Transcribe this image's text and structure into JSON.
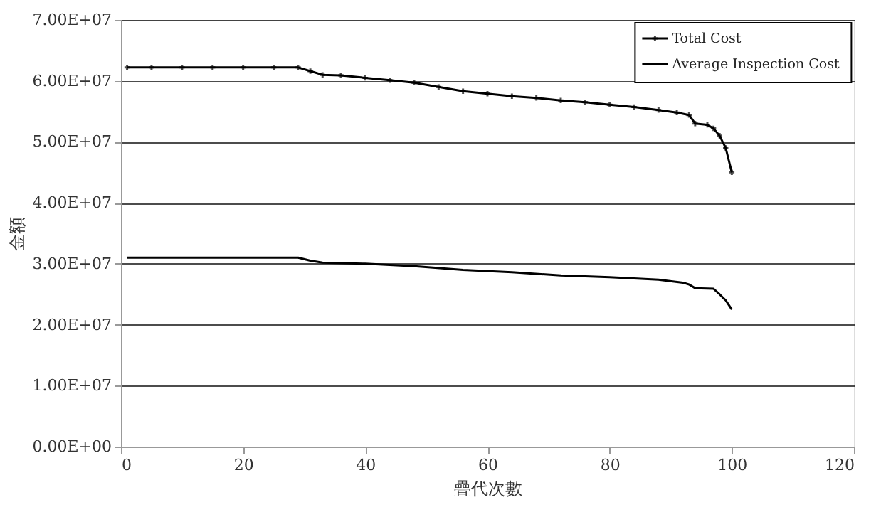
{
  "chart_data": {
    "type": "line",
    "xlabel": "疊代次數",
    "ylabel": "金額",
    "xlim": [
      0,
      120
    ],
    "xticks": [
      0,
      20,
      40,
      60,
      80,
      100,
      120
    ],
    "ylim": [
      0,
      70000000
    ],
    "yticks": [
      {
        "value": 0,
        "label": "0.00E+00"
      },
      {
        "value": 10000000,
        "label": "1.00E+07"
      },
      {
        "value": 20000000,
        "label": "2.00E+07"
      },
      {
        "value": 30000000,
        "label": "3.00E+07"
      },
      {
        "value": 40000000,
        "label": "4.00E+07"
      },
      {
        "value": 50000000,
        "label": "5.00E+07"
      },
      {
        "value": 60000000,
        "label": "6.00E+07"
      },
      {
        "value": 70000000,
        "label": "7.00E+07"
      }
    ],
    "grid": "y",
    "legend": "top right",
    "line_style": "solid",
    "series": [
      {
        "name": "Total Cost",
        "color": "#000000",
        "marker": "cross",
        "x": [
          1,
          5,
          10,
          15,
          20,
          25,
          29,
          31,
          33,
          36,
          40,
          44,
          48,
          52,
          56,
          60,
          64,
          68,
          72,
          76,
          80,
          84,
          88,
          91,
          93,
          94,
          96,
          97,
          98,
          99,
          100
        ],
        "values": [
          62200000,
          62200000,
          62200000,
          62200000,
          62200000,
          62200000,
          62200000,
          61600000,
          61000000,
          60900000,
          60500000,
          60100000,
          59700000,
          59000000,
          58300000,
          57900000,
          57500000,
          57200000,
          56800000,
          56500000,
          56100000,
          55700000,
          55200000,
          54800000,
          54400000,
          53000000,
          52800000,
          52200000,
          51000000,
          49000000,
          45000000
        ]
      },
      {
        "name": "Average Inspection Cost",
        "color": "#000000",
        "marker": "none",
        "x": [
          1,
          10,
          20,
          29,
          31,
          33,
          40,
          48,
          56,
          64,
          72,
          80,
          88,
          92,
          93,
          94,
          97,
          98,
          99,
          100
        ],
        "values": [
          31000000,
          31000000,
          31000000,
          31000000,
          30500000,
          30200000,
          30000000,
          29600000,
          29000000,
          28600000,
          28100000,
          27800000,
          27400000,
          26900000,
          26600000,
          26000000,
          25900000,
          25000000,
          24000000,
          22500000
        ]
      }
    ]
  }
}
